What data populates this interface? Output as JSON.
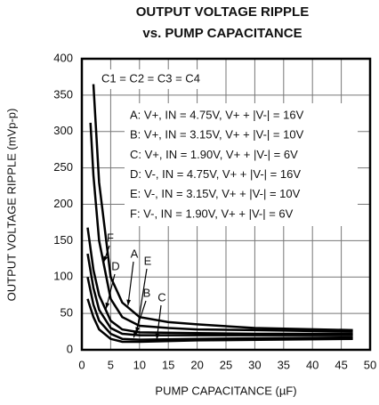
{
  "chart_data": {
    "type": "line",
    "title": [
      "OUTPUT VOLTAGE RIPPLE",
      "vs. PUMP CAPACITANCE"
    ],
    "x_label": "PUMP CAPACITANCE (µF)",
    "y_label": "OUTPUT VOLTAGE RIPPLE (mVp-p)",
    "xlim": [
      0,
      50
    ],
    "xticks": [
      0,
      5,
      10,
      15,
      20,
      25,
      30,
      35,
      40,
      45,
      50
    ],
    "ylim": [
      0,
      400
    ],
    "yticks": [
      0,
      50,
      100,
      150,
      200,
      250,
      300,
      350,
      400
    ],
    "grid": true,
    "annotations": [
      "C1 = C2 = C3 = C4",
      "A: V+, IN = 4.75V, V+ + |V-| = 16V",
      "B: V+, IN = 3.15V, V+ + |V-| = 10V",
      "C: V+, IN = 1.90V, V+ + |V-| = 6V",
      "D: V-, IN = 4.75V, V+ + |V-| = 16V",
      "E: V-, IN = 3.15V, V+ + |V-| = 10V",
      "F: V-, IN = 1.90V, V+ + |V-| = 6V"
    ],
    "series": [
      {
        "name": "A",
        "color": "#000000",
        "x": [
          2,
          3,
          5,
          7,
          10,
          15,
          20,
          30,
          47
        ],
        "values": [
          365,
          230,
          100,
          65,
          45,
          38,
          35,
          30,
          27
        ]
      },
      {
        "name": "F",
        "color": "#000000",
        "x": [
          1.5,
          2,
          3,
          5,
          7,
          10,
          15,
          20,
          30,
          47
        ],
        "values": [
          312,
          240,
          150,
          70,
          45,
          33,
          30,
          28,
          27,
          25
        ]
      },
      {
        "name": "D",
        "color": "#000000",
        "x": [
          1,
          2,
          3,
          5,
          7,
          10,
          20,
          30,
          47
        ],
        "values": [
          168,
          110,
          75,
          40,
          28,
          24,
          23,
          22,
          22
        ]
      },
      {
        "name": "E",
        "color": "#000000",
        "x": [
          1,
          2,
          3,
          5,
          7,
          10,
          20,
          47
        ],
        "values": [
          132,
          85,
          55,
          30,
          22,
          20,
          20,
          20
        ]
      },
      {
        "name": "B",
        "color": "#000000",
        "x": [
          1,
          2,
          3,
          5,
          7,
          10,
          20,
          47
        ],
        "values": [
          100,
          62,
          40,
          22,
          15,
          14,
          15,
          17
        ]
      },
      {
        "name": "C",
        "color": "#000000",
        "x": [
          1,
          2,
          3,
          5,
          7,
          10,
          20,
          47
        ],
        "values": [
          70,
          45,
          28,
          15,
          11,
          11,
          13,
          15
        ]
      }
    ]
  }
}
